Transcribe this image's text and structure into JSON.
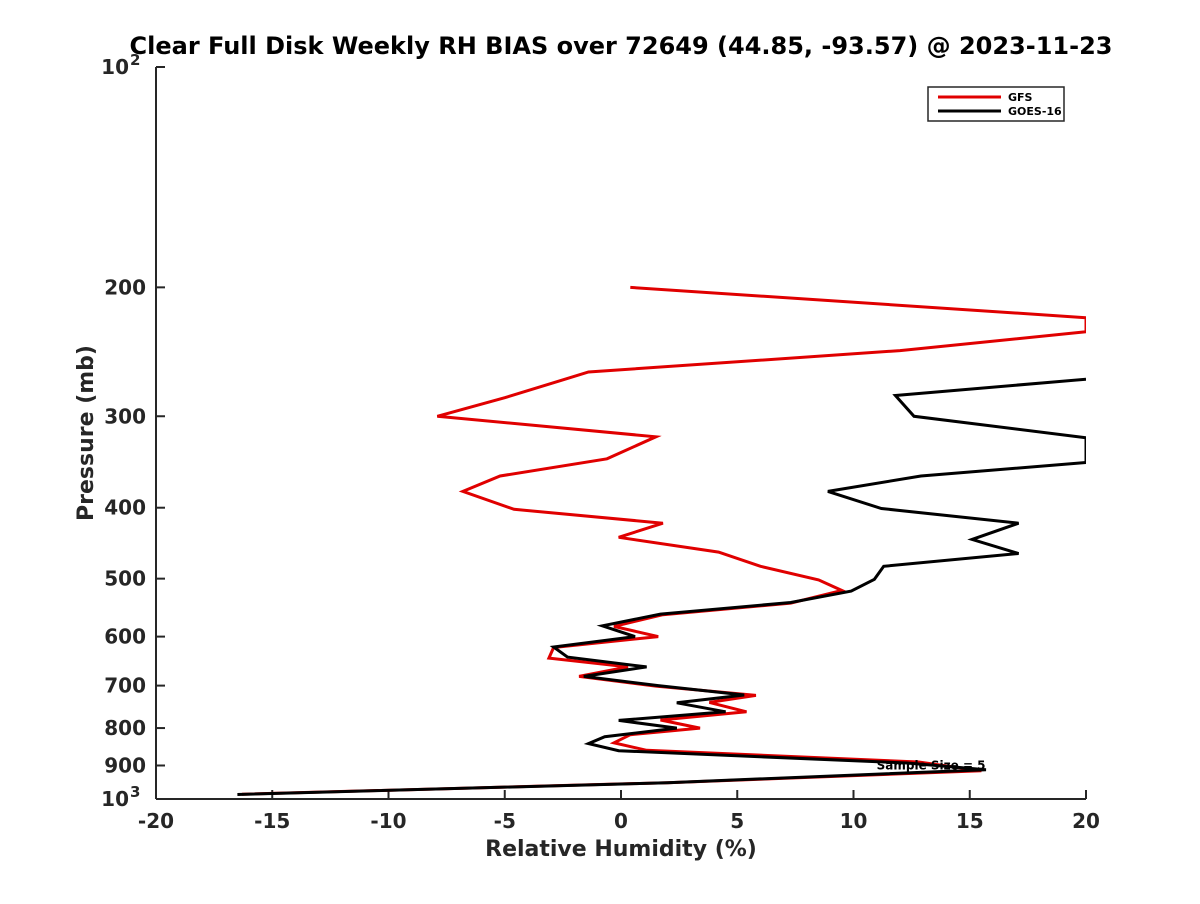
{
  "chart_data": {
    "type": "line",
    "title": "Clear Full Disk Weekly RH BIAS over 72649 (44.85, -93.57) @ 2023-11-23",
    "xlabel": "Relative Humidity (%)",
    "ylabel": "Pressure (mb)",
    "xlim": [
      -20,
      20
    ],
    "ylim": [
      100,
      1000
    ],
    "y_scale": "log",
    "y_reversed": true,
    "grid": false,
    "legend_position": "top-right",
    "x_ticks": [
      {
        "value": -20,
        "label": "-20"
      },
      {
        "value": -15,
        "label": "-15"
      },
      {
        "value": -10,
        "label": "-10"
      },
      {
        "value": -5,
        "label": "-5"
      },
      {
        "value": 0,
        "label": "0"
      },
      {
        "value": 5,
        "label": "5"
      },
      {
        "value": 10,
        "label": "10"
      },
      {
        "value": 15,
        "label": "15"
      },
      {
        "value": 20,
        "label": "20"
      }
    ],
    "y_ticks": [
      {
        "value": 100,
        "base": "10",
        "exp": "2"
      },
      {
        "value": 200,
        "label": "200"
      },
      {
        "value": 300,
        "label": "300"
      },
      {
        "value": 400,
        "label": "400"
      },
      {
        "value": 500,
        "label": "500"
      },
      {
        "value": 600,
        "label": "600"
      },
      {
        "value": 700,
        "label": "700"
      },
      {
        "value": 800,
        "label": "800"
      },
      {
        "value": 900,
        "label": "900"
      },
      {
        "value": 1000,
        "base": "10",
        "exp": "3"
      }
    ],
    "series": [
      {
        "name": "GFS",
        "color": "#e00000",
        "points": [
          {
            "x": 0.4,
            "y": 200
          },
          {
            "x": 20,
            "y": 220
          },
          {
            "x": 20,
            "y": 230
          },
          {
            "x": 12,
            "y": 244
          },
          {
            "x": -1.4,
            "y": 261
          },
          {
            "x": -5,
            "y": 283
          },
          {
            "x": -7.9,
            "y": 300
          },
          {
            "x": 1.5,
            "y": 320
          },
          {
            "x": -0.6,
            "y": 343
          },
          {
            "x": -5.2,
            "y": 362
          },
          {
            "x": -6.8,
            "y": 380
          },
          {
            "x": -4.6,
            "y": 402
          },
          {
            "x": 1.8,
            "y": 420
          },
          {
            "x": -0.1,
            "y": 439
          },
          {
            "x": 4.2,
            "y": 460
          },
          {
            "x": 6,
            "y": 481
          },
          {
            "x": 8.5,
            "y": 502
          },
          {
            "x": 9.5,
            "y": 519
          },
          {
            "x": 7.3,
            "y": 540
          },
          {
            "x": 1.8,
            "y": 560
          },
          {
            "x": -0.3,
            "y": 581
          },
          {
            "x": 1.6,
            "y": 600
          },
          {
            "x": -2.9,
            "y": 621
          },
          {
            "x": -3.1,
            "y": 642
          },
          {
            "x": 0.3,
            "y": 660
          },
          {
            "x": -1.8,
            "y": 680
          },
          {
            "x": 1.5,
            "y": 701
          },
          {
            "x": 5.8,
            "y": 722
          },
          {
            "x": 3.8,
            "y": 738
          },
          {
            "x": 5.4,
            "y": 760
          },
          {
            "x": 1.7,
            "y": 780
          },
          {
            "x": 3.4,
            "y": 800
          },
          {
            "x": 0.4,
            "y": 817
          },
          {
            "x": -0.3,
            "y": 838
          },
          {
            "x": 1.1,
            "y": 858
          },
          {
            "x": 12.8,
            "y": 890
          },
          {
            "x": 15.5,
            "y": 915
          },
          {
            "x": 2,
            "y": 950
          },
          {
            "x": -16.3,
            "y": 985
          }
        ]
      },
      {
        "name": "GOES-16",
        "color": "#000000",
        "points": [
          {
            "x": 20,
            "y": 267
          },
          {
            "x": 11.8,
            "y": 281
          },
          {
            "x": 12.6,
            "y": 300
          },
          {
            "x": 20,
            "y": 321
          },
          {
            "x": 20,
            "y": 347
          },
          {
            "x": 12.9,
            "y": 362
          },
          {
            "x": 8.9,
            "y": 380
          },
          {
            "x": 11.2,
            "y": 401
          },
          {
            "x": 17.1,
            "y": 420
          },
          {
            "x": 15.1,
            "y": 442
          },
          {
            "x": 17.1,
            "y": 462
          },
          {
            "x": 11.3,
            "y": 481
          },
          {
            "x": 10.9,
            "y": 501
          },
          {
            "x": 9.9,
            "y": 520
          },
          {
            "x": 7.3,
            "y": 539
          },
          {
            "x": 1.7,
            "y": 559
          },
          {
            "x": -0.8,
            "y": 580
          },
          {
            "x": 0.6,
            "y": 600
          },
          {
            "x": -2.9,
            "y": 620
          },
          {
            "x": -2.3,
            "y": 640
          },
          {
            "x": 1.1,
            "y": 660
          },
          {
            "x": -1.6,
            "y": 680
          },
          {
            "x": 1.6,
            "y": 700
          },
          {
            "x": 5.3,
            "y": 721
          },
          {
            "x": 2.4,
            "y": 739
          },
          {
            "x": 4.5,
            "y": 760
          },
          {
            "x": -0.1,
            "y": 781
          },
          {
            "x": 2.4,
            "y": 800
          },
          {
            "x": -0.7,
            "y": 822
          },
          {
            "x": -1.4,
            "y": 840
          },
          {
            "x": -0.1,
            "y": 859
          },
          {
            "x": 12.3,
            "y": 893
          },
          {
            "x": 15.7,
            "y": 912
          },
          {
            "x": 2,
            "y": 950
          },
          {
            "x": -16.5,
            "y": 986
          }
        ]
      }
    ],
    "annotations": [
      {
        "text": "Sample Size = 5",
        "x": 12.5,
        "y": 900
      }
    ]
  }
}
